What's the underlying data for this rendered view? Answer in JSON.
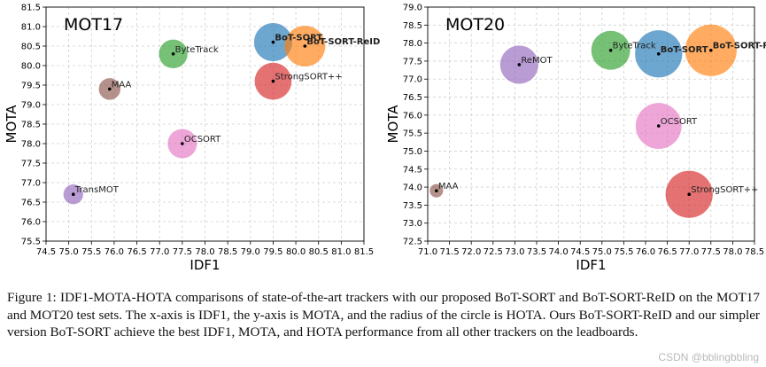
{
  "chart_data": [
    {
      "type": "scatter",
      "title": "MOT17",
      "xlabel": "IDF1",
      "ylabel": "MOTA",
      "xlim": [
        74.5,
        81.5
      ],
      "ylim": [
        75.5,
        81.5
      ],
      "xticks": [
        "74.5",
        "75.0",
        "75.5",
        "76.0",
        "76.5",
        "77.0",
        "77.5",
        "78.0",
        "78.5",
        "79.0",
        "79.5",
        "80.0",
        "80.5",
        "81.0",
        "81.5"
      ],
      "yticks": [
        "75.5",
        "76.0",
        "76.5",
        "77.0",
        "77.5",
        "78.0",
        "78.5",
        "79.0",
        "79.5",
        "80.0",
        "80.5",
        "81.0",
        "81.5"
      ],
      "grid": true,
      "points": [
        {
          "name": "TransMOT",
          "x": 75.1,
          "y": 76.7,
          "hota": 61.7,
          "color": "#9467bd",
          "bold": false
        },
        {
          "name": "MAA",
          "x": 75.9,
          "y": 79.4,
          "hota": 62.0,
          "color": "#8c564b",
          "bold": false
        },
        {
          "name": "ByteTrack",
          "x": 77.3,
          "y": 80.3,
          "hota": 63.1,
          "color": "#2ca02c",
          "bold": false
        },
        {
          "name": "OCSORT",
          "x": 77.5,
          "y": 78.0,
          "hota": 63.2,
          "color": "#e377c2",
          "bold": false
        },
        {
          "name": "StrongSORT++",
          "x": 79.5,
          "y": 79.6,
          "hota": 64.4,
          "color": "#d62728",
          "bold": false
        },
        {
          "name": "BoT-SORT",
          "x": 79.5,
          "y": 80.6,
          "hota": 64.6,
          "color": "#1f77b4",
          "bold": true
        },
        {
          "name": "BoT-SORT-ReID",
          "x": 80.2,
          "y": 80.5,
          "hota": 65.0,
          "color": "#ff7f0e",
          "bold": true
        }
      ]
    },
    {
      "type": "scatter",
      "title": "MOT20",
      "xlabel": "IDF1",
      "ylabel": "MOTA",
      "xlim": [
        71.0,
        78.5
      ],
      "ylim": [
        72.5,
        79.0
      ],
      "xticks": [
        "71.0",
        "71.5",
        "72.0",
        "72.5",
        "73.0",
        "73.5",
        "74.0",
        "74.5",
        "75.0",
        "75.5",
        "76.0",
        "76.5",
        "77.0",
        "77.5",
        "78.0",
        "78.5"
      ],
      "yticks": [
        "72.5",
        "73.0",
        "73.5",
        "74.0",
        "74.5",
        "75.0",
        "75.5",
        "76.0",
        "76.5",
        "77.0",
        "77.5",
        "78.0",
        "78.5",
        "79.0"
      ],
      "grid": true,
      "points": [
        {
          "name": "MAA",
          "x": 71.2,
          "y": 73.9,
          "hota": 57.3,
          "color": "#8c564b",
          "bold": false
        },
        {
          "name": "ReMOT",
          "x": 73.1,
          "y": 77.4,
          "hota": 61.2,
          "color": "#9467bd",
          "bold": false
        },
        {
          "name": "ByteTrack",
          "x": 75.2,
          "y": 77.8,
          "hota": 61.3,
          "color": "#2ca02c",
          "bold": false
        },
        {
          "name": "BoT-SORT",
          "x": 76.3,
          "y": 77.7,
          "hota": 62.6,
          "color": "#1f77b4",
          "bold": true
        },
        {
          "name": "OCSORT",
          "x": 76.3,
          "y": 75.7,
          "hota": 62.4,
          "color": "#e377c2",
          "bold": false
        },
        {
          "name": "StrongSORT++",
          "x": 77.0,
          "y": 73.8,
          "hota": 62.6,
          "color": "#d62728",
          "bold": false
        },
        {
          "name": "BoT-SORT-ReID",
          "x": 77.5,
          "y": 77.8,
          "hota": 63.3,
          "color": "#ff7f0e",
          "bold": true
        }
      ]
    }
  ],
  "caption": "Figure 1: IDF1-MOTA-HOTA comparisons of state-of-the-art trackers with our proposed BoT-SORT and BoT-SORT-ReID on the MOT17 and MOT20 test sets. The x-axis is IDF1, the y-axis is MOTA, and the radius of the circle is HOTA. Ours BoT-SORT-ReID and our simpler version BoT-SORT achieve the best IDF1, MOTA, and HOTA performance from all other trackers on the leadboards.",
  "watermark": "CSDN @bblingbbling"
}
